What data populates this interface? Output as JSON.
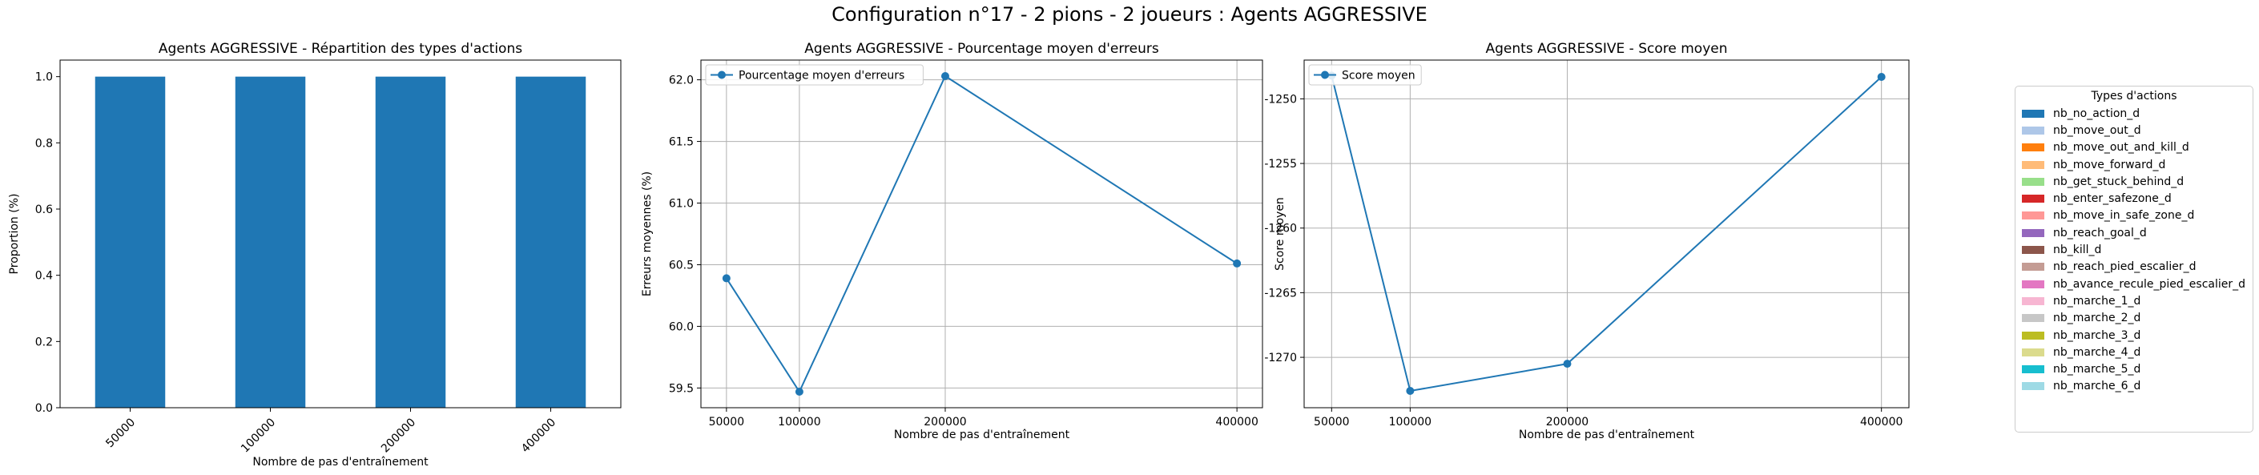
{
  "figure": {
    "suptitle": "Configuration n°17 - 2 pions - 2 joueurs : Agents AGGRESSIVE"
  },
  "chart_data": [
    {
      "type": "bar",
      "stacked": true,
      "title": "Agents AGGRESSIVE - Répartition des types d'actions",
      "xlabel": "Nombre de pas d'entraînement",
      "ylabel": "Proportion (%)",
      "categories": [
        "50000",
        "100000",
        "200000",
        "400000"
      ],
      "ylim": [
        0,
        1.05
      ],
      "yticks": [
        "0.0",
        "0.2",
        "0.4",
        "0.6",
        "0.8",
        "1.0"
      ],
      "grid": false,
      "series": [
        {
          "name": "nb_no_action_d",
          "values": [
            1.0,
            1.0,
            1.0,
            1.0
          ],
          "color": "#1f77b4"
        },
        {
          "name": "nb_move_out_d",
          "values": [
            0,
            0,
            0,
            0
          ],
          "color": "#aec7e8"
        },
        {
          "name": "nb_move_out_and_kill_d",
          "values": [
            0,
            0,
            0,
            0
          ],
          "color": "#ff7f0e"
        },
        {
          "name": "nb_move_forward_d",
          "values": [
            0,
            0,
            0,
            0
          ],
          "color": "#ffbb78"
        },
        {
          "name": "nb_get_stuck_behind_d",
          "values": [
            0,
            0,
            0,
            0
          ],
          "color": "#98df8a"
        },
        {
          "name": "nb_enter_safezone_d",
          "values": [
            0,
            0,
            0,
            0
          ],
          "color": "#d62728"
        },
        {
          "name": "nb_move_in_safe_zone_d",
          "values": [
            0,
            0,
            0,
            0
          ],
          "color": "#ff9896"
        },
        {
          "name": "nb_reach_goal_d",
          "values": [
            0,
            0,
            0,
            0
          ],
          "color": "#9467bd"
        },
        {
          "name": "nb_kill_d",
          "values": [
            0,
            0,
            0,
            0
          ],
          "color": "#8c564b"
        },
        {
          "name": "nb_reach_pied_escalier_d",
          "values": [
            0,
            0,
            0,
            0
          ],
          "color": "#c49c94"
        },
        {
          "name": "nb_avance_recule_pied_escalier_d",
          "values": [
            0,
            0,
            0,
            0
          ],
          "color": "#e377c2"
        },
        {
          "name": "nb_marche_1_d",
          "values": [
            0,
            0,
            0,
            0
          ],
          "color": "#f7b6d2"
        },
        {
          "name": "nb_marche_2_d",
          "values": [
            0,
            0,
            0,
            0
          ],
          "color": "#c7c7c7"
        },
        {
          "name": "nb_marche_3_d",
          "values": [
            0,
            0,
            0,
            0
          ],
          "color": "#bcbd22"
        },
        {
          "name": "nb_marche_4_d",
          "values": [
            0,
            0,
            0,
            0
          ],
          "color": "#dbdb8d"
        },
        {
          "name": "nb_marche_5_d",
          "values": [
            0,
            0,
            0,
            0
          ],
          "color": "#17becf"
        },
        {
          "name": "nb_marche_6_d",
          "values": [
            0,
            0,
            0,
            0
          ],
          "color": "#9edae5"
        }
      ],
      "legend": {
        "title": "Types d'actions",
        "placement": "outside-right"
      }
    },
    {
      "type": "line",
      "title": "Agents AGGRESSIVE - Pourcentage moyen d'erreurs",
      "xlabel": "Nombre de pas d'entraînement",
      "ylabel": "Erreurs moyennes (%)",
      "x": [
        50000,
        100000,
        200000,
        400000
      ],
      "xlim": [
        32500,
        417500
      ],
      "ylim": [
        59.34,
        62.16
      ],
      "xticks": [
        "50000",
        "100000",
        "200000",
        "400000"
      ],
      "yticks": [
        "59.5",
        "60.0",
        "60.5",
        "61.0",
        "61.5",
        "62.0"
      ],
      "grid": true,
      "series": [
        {
          "name": "Pourcentage moyen d'erreurs",
          "values": [
            60.39,
            59.47,
            62.03,
            60.51
          ],
          "color": "#1f77b4"
        }
      ],
      "legend": {
        "placement": "upper-left"
      }
    },
    {
      "type": "line",
      "title": "Agents AGGRESSIVE - Score moyen",
      "xlabel": "Nombre de pas d'entraînement",
      "ylabel": "Score moyen",
      "x": [
        50000,
        100000,
        200000,
        400000
      ],
      "xlim": [
        32500,
        417500
      ],
      "ylim": [
        -1273.9,
        -1247.0
      ],
      "xticks": [
        "50000",
        "100000",
        "200000",
        "400000"
      ],
      "yticks": [
        "-1250",
        "-1255",
        "-1260",
        "-1265",
        "-1270"
      ],
      "grid": true,
      "series": [
        {
          "name": "Score moyen",
          "values": [
            -1248.2,
            -1272.6,
            -1270.5,
            -1248.3
          ],
          "color": "#1f77b4"
        }
      ],
      "legend": {
        "placement": "upper-left"
      }
    }
  ]
}
